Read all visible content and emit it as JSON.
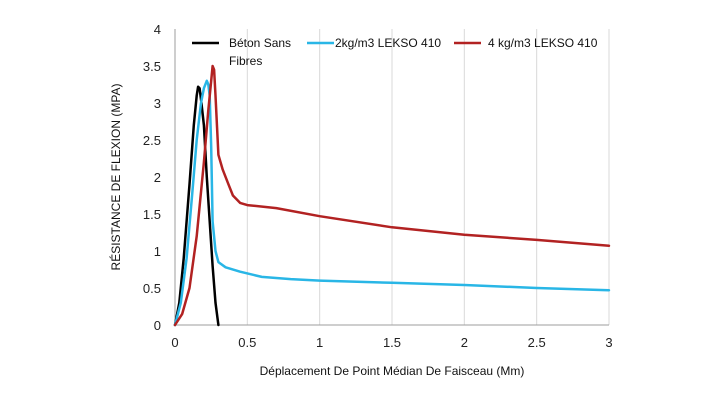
{
  "chart_data": {
    "type": "line",
    "title": "",
    "xlabel": "Déplacement De Point Médian De Faisceau  (Mm)",
    "ylabel": "RÉSISTANCE DE FLEXION  (MPA)",
    "xlim": [
      0,
      3
    ],
    "ylim": [
      0,
      4
    ],
    "x_ticks": [
      "0",
      "0.5",
      "1",
      "1.5",
      "2",
      "2.5",
      "3"
    ],
    "y_ticks": [
      "0",
      "0.5",
      "1",
      "1.5",
      "2",
      "2.5",
      "3",
      "3.5",
      "4"
    ],
    "grid": "vertical",
    "legend_position": "top",
    "series": [
      {
        "name_lines": [
          "Béton Sans",
          "Fibres"
        ],
        "color": "#000000",
        "points": [
          [
            0,
            0
          ],
          [
            0.03,
            0.3
          ],
          [
            0.06,
            0.9
          ],
          [
            0.1,
            1.9
          ],
          [
            0.13,
            2.7
          ],
          [
            0.15,
            3.1
          ],
          [
            0.16,
            3.22
          ],
          [
            0.17,
            3.2
          ],
          [
            0.18,
            3.05
          ],
          [
            0.2,
            2.7
          ],
          [
            0.22,
            2.0
          ],
          [
            0.24,
            1.4
          ],
          [
            0.26,
            0.8
          ],
          [
            0.28,
            0.3
          ],
          [
            0.3,
            0
          ]
        ]
      },
      {
        "name": "2kg/m3 LEKSO 410",
        "color": "#29b6e6",
        "points": [
          [
            0,
            0
          ],
          [
            0.04,
            0.3
          ],
          [
            0.08,
            0.9
          ],
          [
            0.12,
            1.8
          ],
          [
            0.15,
            2.5
          ],
          [
            0.18,
            3.0
          ],
          [
            0.2,
            3.2
          ],
          [
            0.22,
            3.3
          ],
          [
            0.23,
            3.25
          ],
          [
            0.24,
            3.1
          ],
          [
            0.25,
            2.4
          ],
          [
            0.26,
            1.4
          ],
          [
            0.28,
            1.0
          ],
          [
            0.3,
            0.85
          ],
          [
            0.35,
            0.78
          ],
          [
            0.45,
            0.72
          ],
          [
            0.6,
            0.65
          ],
          [
            0.8,
            0.62
          ],
          [
            1.0,
            0.6
          ],
          [
            1.5,
            0.57
          ],
          [
            2.0,
            0.54
          ],
          [
            2.5,
            0.5
          ],
          [
            3.0,
            0.47
          ]
        ]
      },
      {
        "name": "4 kg/m3 LEKSO 410",
        "color": "#b22222",
        "points": [
          [
            0,
            0
          ],
          [
            0.05,
            0.15
          ],
          [
            0.1,
            0.5
          ],
          [
            0.15,
            1.2
          ],
          [
            0.2,
            2.2
          ],
          [
            0.23,
            2.9
          ],
          [
            0.25,
            3.3
          ],
          [
            0.26,
            3.5
          ],
          [
            0.27,
            3.45
          ],
          [
            0.28,
            3.1
          ],
          [
            0.3,
            2.3
          ],
          [
            0.33,
            2.1
          ],
          [
            0.37,
            1.9
          ],
          [
            0.4,
            1.75
          ],
          [
            0.45,
            1.65
          ],
          [
            0.5,
            1.62
          ],
          [
            0.7,
            1.58
          ],
          [
            1.0,
            1.47
          ],
          [
            1.5,
            1.32
          ],
          [
            2.0,
            1.22
          ],
          [
            2.5,
            1.15
          ],
          [
            3.0,
            1.07
          ]
        ]
      }
    ]
  }
}
